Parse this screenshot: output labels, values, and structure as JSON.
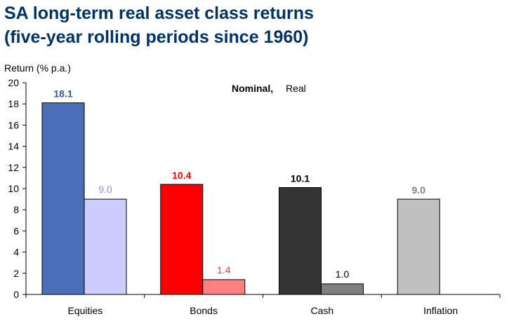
{
  "header": {
    "title_line1": "SA long-term real asset class returns",
    "title_line2": "(five-year rolling periods since 1960)"
  },
  "colors": {
    "title": "#003366",
    "equities_nominal": "#4a6fb8",
    "equities_real": "#ccccff",
    "bonds_nominal": "#ff0000",
    "bonds_real": "#ff8080",
    "cash_nominal": "#333333",
    "cash_real": "#808080",
    "inflation": "#c0c0c0",
    "equities_label": "#3355aa",
    "equities_real_label": "#8899dd",
    "bonds_label": "#ff0000",
    "bonds_real_label": "#ff3333",
    "cash_label": "#000000",
    "cash_real_label": "#000000",
    "inflation_label": "#808080"
  },
  "chart_data": {
    "type": "bar",
    "ylabel": "Return (% p.a.)",
    "xlabel": "",
    "ylim": [
      0,
      20
    ],
    "yticks": [
      0,
      2,
      4,
      6,
      8,
      10,
      12,
      14,
      16,
      18,
      20
    ],
    "grid": false,
    "legend_text": {
      "nominal": "Nominal,",
      "real": "Real"
    },
    "legend_position": "top-center",
    "categories": [
      "Equities",
      "Bonds",
      "Cash",
      "Inflation"
    ],
    "series": [
      {
        "name": "Nominal",
        "values": [
          18.1,
          10.4,
          10.1,
          9.0
        ],
        "labels": [
          "18.1",
          "10.4",
          "10.1",
          "9.0"
        ]
      },
      {
        "name": "Real",
        "values": [
          9.0,
          1.4,
          1.0,
          null
        ],
        "labels": [
          "9.0",
          "1.4",
          "1.0",
          ""
        ]
      }
    ]
  }
}
